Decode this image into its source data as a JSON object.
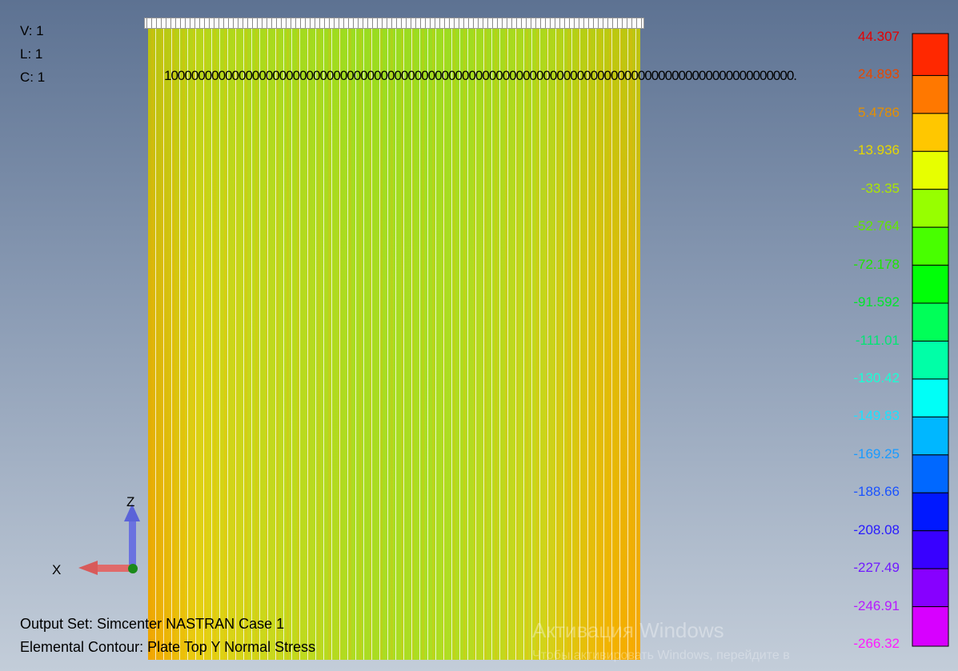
{
  "view_info": [
    "V: 1",
    "L: 1",
    "C: 1"
  ],
  "node_label": "100000000000000000000000000000000000000000000000000000000000000000000000000000000000000000000.",
  "triad": {
    "z": "Z",
    "x": "X"
  },
  "legend": {
    "levels": [
      "44.307",
      "24.893",
      "5.4786",
      "-13.936",
      "-33.35",
      "-52.764",
      "-72.178",
      "-91.592",
      "-111.01",
      "-130.42",
      "-149.83",
      "-169.25",
      "-188.66",
      "-208.08",
      "-227.49",
      "-246.91",
      "-266.32"
    ]
  },
  "footer": [
    "Output Set: Simcenter NASTRAN Case 1",
    "Elemental Contour: Plate Top Y Normal Stress"
  ],
  "watermark": {
    "title": "Активация Windows",
    "subtitle": "Чтобы активировать Windows, перейдите в"
  }
}
